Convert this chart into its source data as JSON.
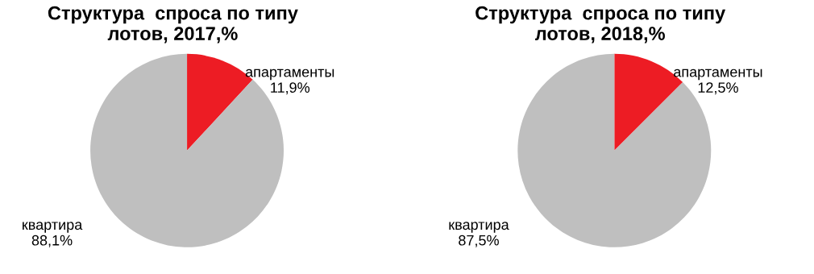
{
  "chart_data": [
    {
      "type": "pie",
      "title": "Структура  спроса по типу\nлотов, 2017,%",
      "categories": [
        "апартаменты",
        "квартира"
      ],
      "values": [
        11.9,
        88.1
      ],
      "colors": [
        "#ed1c24",
        "#bfbfbf"
      ],
      "value_labels": [
        "11,9%",
        "88,1%"
      ]
    },
    {
      "type": "pie",
      "title": "Структура  спроса по типу\nлотов, 2018,%",
      "categories": [
        "апартаменты",
        "квартира"
      ],
      "values": [
        12.5,
        87.5
      ],
      "colors": [
        "#ed1c24",
        "#bfbfbf"
      ],
      "value_labels": [
        "12,5%",
        "87,5%"
      ]
    }
  ]
}
